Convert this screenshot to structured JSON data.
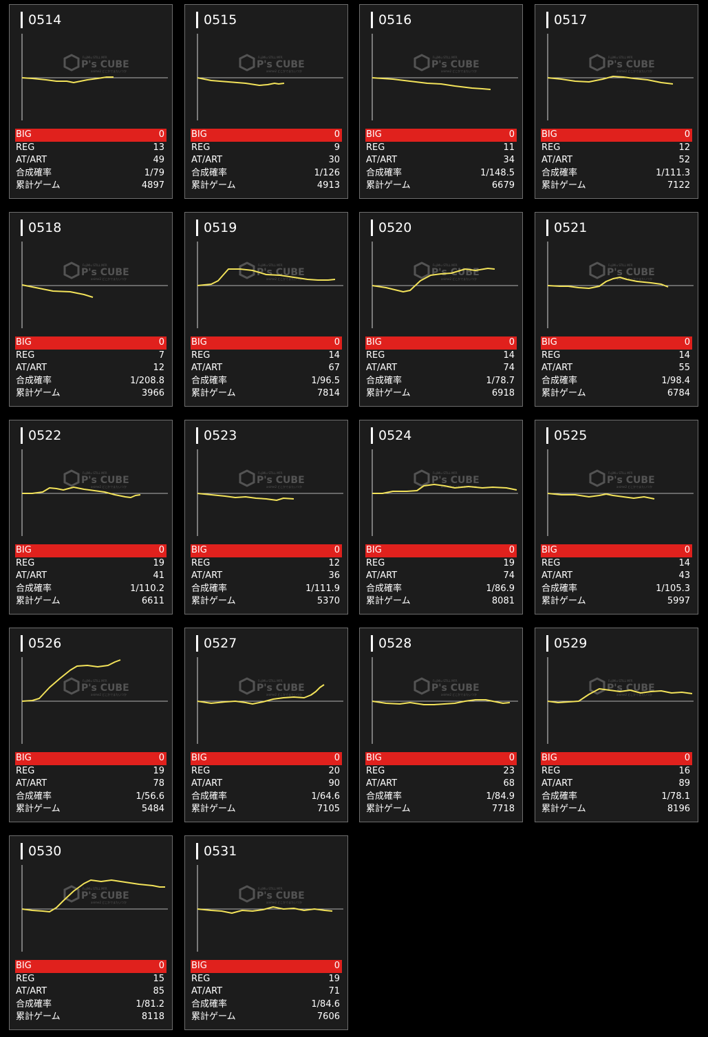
{
  "labels": {
    "big": "BIG",
    "reg": "REG",
    "at": "AT/ART",
    "prob": "合成確率",
    "games": "累計ゲーム"
  },
  "watermark": {
    "brand": "P's CUBE",
    "small_top": "FujiMiu STILL MFR",
    "small_bottom": "anime2 どこかでまたいつか"
  },
  "colors": {
    "card_bg": "#1c1c1c",
    "big_bar": "#e0211d",
    "line": "#f3e35a",
    "baseline": "#b5b5b5",
    "axis": "#d8d8d8"
  },
  "machines": [
    {
      "id": "0514",
      "big": "0",
      "reg": "13",
      "at": "49",
      "prob": "1/79",
      "games": "4897",
      "graph": [
        [
          0,
          112
        ],
        [
          15,
          113
        ],
        [
          35,
          115
        ],
        [
          50,
          117
        ],
        [
          65,
          117
        ],
        [
          75,
          119
        ],
        [
          85,
          117
        ],
        [
          95,
          115
        ],
        [
          110,
          113
        ],
        [
          123,
          111
        ],
        [
          133,
          111
        ]
      ]
    },
    {
      "id": "0515",
      "big": "0",
      "reg": "9",
      "at": "30",
      "prob": "1/126",
      "games": "4913",
      "graph": [
        [
          0,
          112
        ],
        [
          20,
          116
        ],
        [
          45,
          118
        ],
        [
          70,
          120
        ],
        [
          90,
          123
        ],
        [
          102,
          122
        ],
        [
          112,
          120
        ],
        [
          118,
          121
        ],
        [
          126,
          120
        ]
      ]
    },
    {
      "id": "0516",
      "big": "0",
      "reg": "11",
      "at": "34",
      "prob": "1/148.5",
      "games": "6679",
      "graph": [
        [
          0,
          112
        ],
        [
          30,
          114
        ],
        [
          55,
          117
        ],
        [
          80,
          120
        ],
        [
          100,
          121
        ],
        [
          120,
          124
        ],
        [
          145,
          127
        ],
        [
          160,
          128
        ],
        [
          172,
          129
        ]
      ]
    },
    {
      "id": "0517",
      "big": "0",
      "reg": "12",
      "at": "52",
      "prob": "1/111.3",
      "games": "7122",
      "graph": [
        [
          0,
          112
        ],
        [
          20,
          114
        ],
        [
          40,
          117
        ],
        [
          60,
          118
        ],
        [
          80,
          114
        ],
        [
          95,
          110
        ],
        [
          110,
          111
        ],
        [
          125,
          113
        ],
        [
          145,
          115
        ],
        [
          165,
          119
        ],
        [
          182,
          121
        ]
      ]
    },
    {
      "id": "0518",
      "big": "0",
      "reg": "7",
      "at": "12",
      "prob": "1/208.8",
      "games": "3966",
      "graph": [
        [
          0,
          413
        ],
        [
          25,
          418
        ],
        [
          45,
          422
        ],
        [
          70,
          423
        ],
        [
          90,
          427
        ],
        [
          103,
          431
        ]
      ]
    },
    {
      "id": "0519",
      "big": "0",
      "reg": "14",
      "at": "67",
      "prob": "1/96.5",
      "games": "7814",
      "graph": [
        [
          0,
          414
        ],
        [
          20,
          412
        ],
        [
          30,
          407
        ],
        [
          45,
          390
        ],
        [
          62,
          390
        ],
        [
          80,
          392
        ],
        [
          100,
          398
        ],
        [
          120,
          399
        ],
        [
          140,
          402
        ],
        [
          160,
          405
        ],
        [
          175,
          406
        ],
        [
          190,
          406
        ],
        [
          200,
          405
        ]
      ]
    },
    {
      "id": "0520",
      "big": "0",
      "reg": "14",
      "at": "74",
      "prob": "1/78.7",
      "games": "6918",
      "graph": [
        [
          0,
          414
        ],
        [
          20,
          417
        ],
        [
          45,
          423
        ],
        [
          55,
          421
        ],
        [
          70,
          407
        ],
        [
          85,
          399
        ],
        [
          100,
          397
        ],
        [
          115,
          396
        ],
        [
          135,
          390
        ],
        [
          150,
          392
        ],
        [
          168,
          389
        ],
        [
          178,
          390
        ]
      ]
    },
    {
      "id": "0521",
      "big": "0",
      "reg": "14",
      "at": "55",
      "prob": "1/98.4",
      "games": "6784",
      "graph": [
        [
          0,
          414
        ],
        [
          18,
          415
        ],
        [
          30,
          415
        ],
        [
          45,
          417
        ],
        [
          60,
          418
        ],
        [
          75,
          415
        ],
        [
          85,
          408
        ],
        [
          95,
          404
        ],
        [
          105,
          402
        ],
        [
          115,
          405
        ],
        [
          130,
          408
        ],
        [
          150,
          410
        ],
        [
          165,
          412
        ],
        [
          175,
          416
        ]
      ]
    },
    {
      "id": "0522",
      "big": "0",
      "reg": "19",
      "at": "41",
      "prob": "1/110.2",
      "games": "6611",
      "graph": [
        [
          0,
          716
        ],
        [
          15,
          716
        ],
        [
          30,
          714
        ],
        [
          40,
          708
        ],
        [
          50,
          709
        ],
        [
          60,
          711
        ],
        [
          75,
          707
        ],
        [
          90,
          710
        ],
        [
          105,
          712
        ],
        [
          120,
          714
        ],
        [
          135,
          718
        ],
        [
          150,
          721
        ],
        [
          158,
          722
        ],
        [
          165,
          719
        ],
        [
          172,
          718
        ]
      ]
    },
    {
      "id": "0523",
      "big": "0",
      "reg": "12",
      "at": "36",
      "prob": "1/111.9",
      "games": "5370",
      "graph": [
        [
          0,
          716
        ],
        [
          20,
          718
        ],
        [
          40,
          720
        ],
        [
          55,
          722
        ],
        [
          70,
          721
        ],
        [
          85,
          723
        ],
        [
          100,
          724
        ],
        [
          115,
          726
        ],
        [
          125,
          723
        ],
        [
          140,
          724
        ]
      ]
    },
    {
      "id": "0524",
      "big": "0",
      "reg": "19",
      "at": "74",
      "prob": "1/86.9",
      "games": "8081",
      "graph": [
        [
          0,
          716
        ],
        [
          15,
          716
        ],
        [
          30,
          713
        ],
        [
          50,
          713
        ],
        [
          65,
          712
        ],
        [
          75,
          705
        ],
        [
          90,
          703
        ],
        [
          105,
          705
        ],
        [
          120,
          708
        ],
        [
          140,
          706
        ],
        [
          160,
          708
        ],
        [
          175,
          707
        ],
        [
          195,
          708
        ],
        [
          210,
          711
        ]
      ]
    },
    {
      "id": "0525",
      "big": "0",
      "reg": "14",
      "at": "43",
      "prob": "1/105.3",
      "games": "5997",
      "graph": [
        [
          0,
          716
        ],
        [
          20,
          718
        ],
        [
          40,
          718
        ],
        [
          60,
          721
        ],
        [
          75,
          719
        ],
        [
          85,
          717
        ],
        [
          95,
          719
        ],
        [
          110,
          721
        ],
        [
          125,
          723
        ],
        [
          140,
          721
        ],
        [
          155,
          724
        ]
      ]
    },
    {
      "id": "0526",
      "big": "0",
      "reg": "19",
      "at": "78",
      "prob": "1/56.6",
      "games": "5484",
      "graph": [
        [
          0,
          1018
        ],
        [
          15,
          1017
        ],
        [
          25,
          1014
        ],
        [
          40,
          998
        ],
        [
          55,
          985
        ],
        [
          70,
          973
        ],
        [
          80,
          967
        ],
        [
          95,
          966
        ],
        [
          110,
          968
        ],
        [
          125,
          966
        ],
        [
          135,
          961
        ],
        [
          143,
          958
        ]
      ]
    },
    {
      "id": "0527",
      "big": "0",
      "reg": "20",
      "at": "90",
      "prob": "1/64.6",
      "games": "7105",
      "graph": [
        [
          0,
          1018
        ],
        [
          20,
          1021
        ],
        [
          40,
          1019
        ],
        [
          55,
          1018
        ],
        [
          70,
          1020
        ],
        [
          80,
          1022
        ],
        [
          95,
          1019
        ],
        [
          110,
          1015
        ],
        [
          125,
          1013
        ],
        [
          140,
          1012
        ],
        [
          155,
          1013
        ],
        [
          165,
          1009
        ],
        [
          172,
          1004
        ],
        [
          178,
          998
        ],
        [
          184,
          994
        ]
      ]
    },
    {
      "id": "0528",
      "big": "0",
      "reg": "23",
      "at": "68",
      "prob": "1/84.9",
      "games": "7718",
      "graph": [
        [
          0,
          1018
        ],
        [
          20,
          1021
        ],
        [
          40,
          1022
        ],
        [
          55,
          1020
        ],
        [
          75,
          1023
        ],
        [
          90,
          1023
        ],
        [
          105,
          1022
        ],
        [
          120,
          1021
        ],
        [
          135,
          1018
        ],
        [
          150,
          1016
        ],
        [
          165,
          1016
        ],
        [
          180,
          1019
        ],
        [
          190,
          1021
        ],
        [
          200,
          1020
        ]
      ]
    },
    {
      "id": "0529",
      "big": "0",
      "reg": "16",
      "at": "89",
      "prob": "1/78.1",
      "games": "8196",
      "graph": [
        [
          0,
          1018
        ],
        [
          15,
          1020
        ],
        [
          30,
          1019
        ],
        [
          45,
          1018
        ],
        [
          60,
          1008
        ],
        [
          75,
          1000
        ],
        [
          90,
          1002
        ],
        [
          105,
          1004
        ],
        [
          120,
          1002
        ],
        [
          135,
          1006
        ],
        [
          150,
          1004
        ],
        [
          165,
          1003
        ],
        [
          180,
          1006
        ],
        [
          195,
          1005
        ],
        [
          210,
          1007
        ]
      ]
    },
    {
      "id": "0530",
      "big": "0",
      "reg": "15",
      "at": "85",
      "prob": "1/81.2",
      "games": "8118",
      "graph": [
        [
          0,
          1320
        ],
        [
          15,
          1322
        ],
        [
          30,
          1323
        ],
        [
          40,
          1324
        ],
        [
          50,
          1318
        ],
        [
          60,
          1308
        ],
        [
          75,
          1294
        ],
        [
          90,
          1283
        ],
        [
          100,
          1278
        ],
        [
          115,
          1280
        ],
        [
          130,
          1278
        ],
        [
          150,
          1281
        ],
        [
          170,
          1284
        ],
        [
          190,
          1286
        ],
        [
          200,
          1288
        ],
        [
          208,
          1288
        ]
      ]
    },
    {
      "id": "0531",
      "big": "0",
      "reg": "19",
      "at": "71",
      "prob": "1/84.6",
      "games": "7606",
      "graph": [
        [
          0,
          1320
        ],
        [
          20,
          1322
        ],
        [
          35,
          1323
        ],
        [
          50,
          1326
        ],
        [
          65,
          1322
        ],
        [
          80,
          1323
        ],
        [
          95,
          1321
        ],
        [
          110,
          1317
        ],
        [
          125,
          1320
        ],
        [
          140,
          1319
        ],
        [
          155,
          1322
        ],
        [
          170,
          1320
        ],
        [
          185,
          1322
        ],
        [
          196,
          1323
        ]
      ]
    }
  ]
}
